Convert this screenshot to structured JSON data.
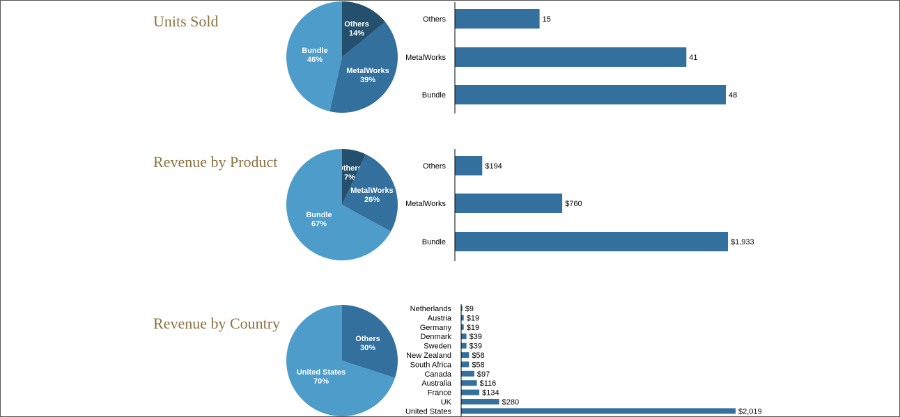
{
  "colors": {
    "pie_dark": "#24506e",
    "pie_mid": "#34709e",
    "pie_light": "#4d9cca",
    "bar": "#34709e",
    "axis": "#000000",
    "title": "#8b7242"
  },
  "chart_data": [
    {
      "id": "units",
      "type": "pie",
      "title": "Units Sold",
      "slices": [
        {
          "label": "Others",
          "pct": "14%",
          "value": 14,
          "color": "#24506e"
        },
        {
          "label": "MetalWorks",
          "pct": "39%",
          "value": 39,
          "color": "#34709e"
        },
        {
          "label": "Bundle",
          "pct": "46%",
          "value": 46,
          "color": "#4d9cca"
        }
      ]
    },
    {
      "id": "units-bar",
      "type": "bar",
      "orientation": "horizontal",
      "categories": [
        "Others",
        "MetalWorks",
        "Bundle"
      ],
      "values": [
        15,
        41,
        48
      ],
      "value_labels": [
        "15",
        "41",
        "48"
      ],
      "xlim": [
        0,
        50
      ]
    },
    {
      "id": "revenue-product",
      "type": "pie",
      "title": "Revenue by Product",
      "slices": [
        {
          "label": "Others",
          "pct": "7%",
          "value": 7,
          "color": "#24506e"
        },
        {
          "label": "MetalWorks",
          "pct": "26%",
          "value": 26,
          "color": "#34709e"
        },
        {
          "label": "Bundle",
          "pct": "67%",
          "value": 67,
          "color": "#4d9cca"
        }
      ]
    },
    {
      "id": "revenue-product-bar",
      "type": "bar",
      "orientation": "horizontal",
      "categories": [
        "Others",
        "MetalWorks",
        "Bundle"
      ],
      "values": [
        194,
        760,
        1933
      ],
      "value_labels": [
        "$194",
        "$760",
        "$1,933"
      ],
      "xlim": [
        0,
        2000
      ]
    },
    {
      "id": "revenue-country",
      "type": "pie",
      "title": "Revenue by Country",
      "slices": [
        {
          "label": "Others",
          "pct": "30%",
          "value": 30,
          "color": "#34709e"
        },
        {
          "label": "United States",
          "pct": "70%",
          "value": 70,
          "color": "#4d9cca"
        }
      ]
    },
    {
      "id": "revenue-country-bar",
      "type": "bar",
      "orientation": "horizontal",
      "categories": [
        "Netherlands",
        "Austria",
        "Germany",
        "Denmark",
        "Sweden",
        "New Zealand",
        "South Africa",
        "Canada",
        "Australia",
        "France",
        "UK",
        "United States"
      ],
      "values": [
        9,
        19,
        19,
        39,
        39,
        58,
        58,
        97,
        116,
        134,
        280,
        2019
      ],
      "value_labels": [
        "$9",
        "$19",
        "$19",
        "$39",
        "$39",
        "$58",
        "$58",
        "$97",
        "$116",
        "$134",
        "$280",
        "$2,019"
      ],
      "xlim": [
        0,
        2019
      ]
    }
  ]
}
